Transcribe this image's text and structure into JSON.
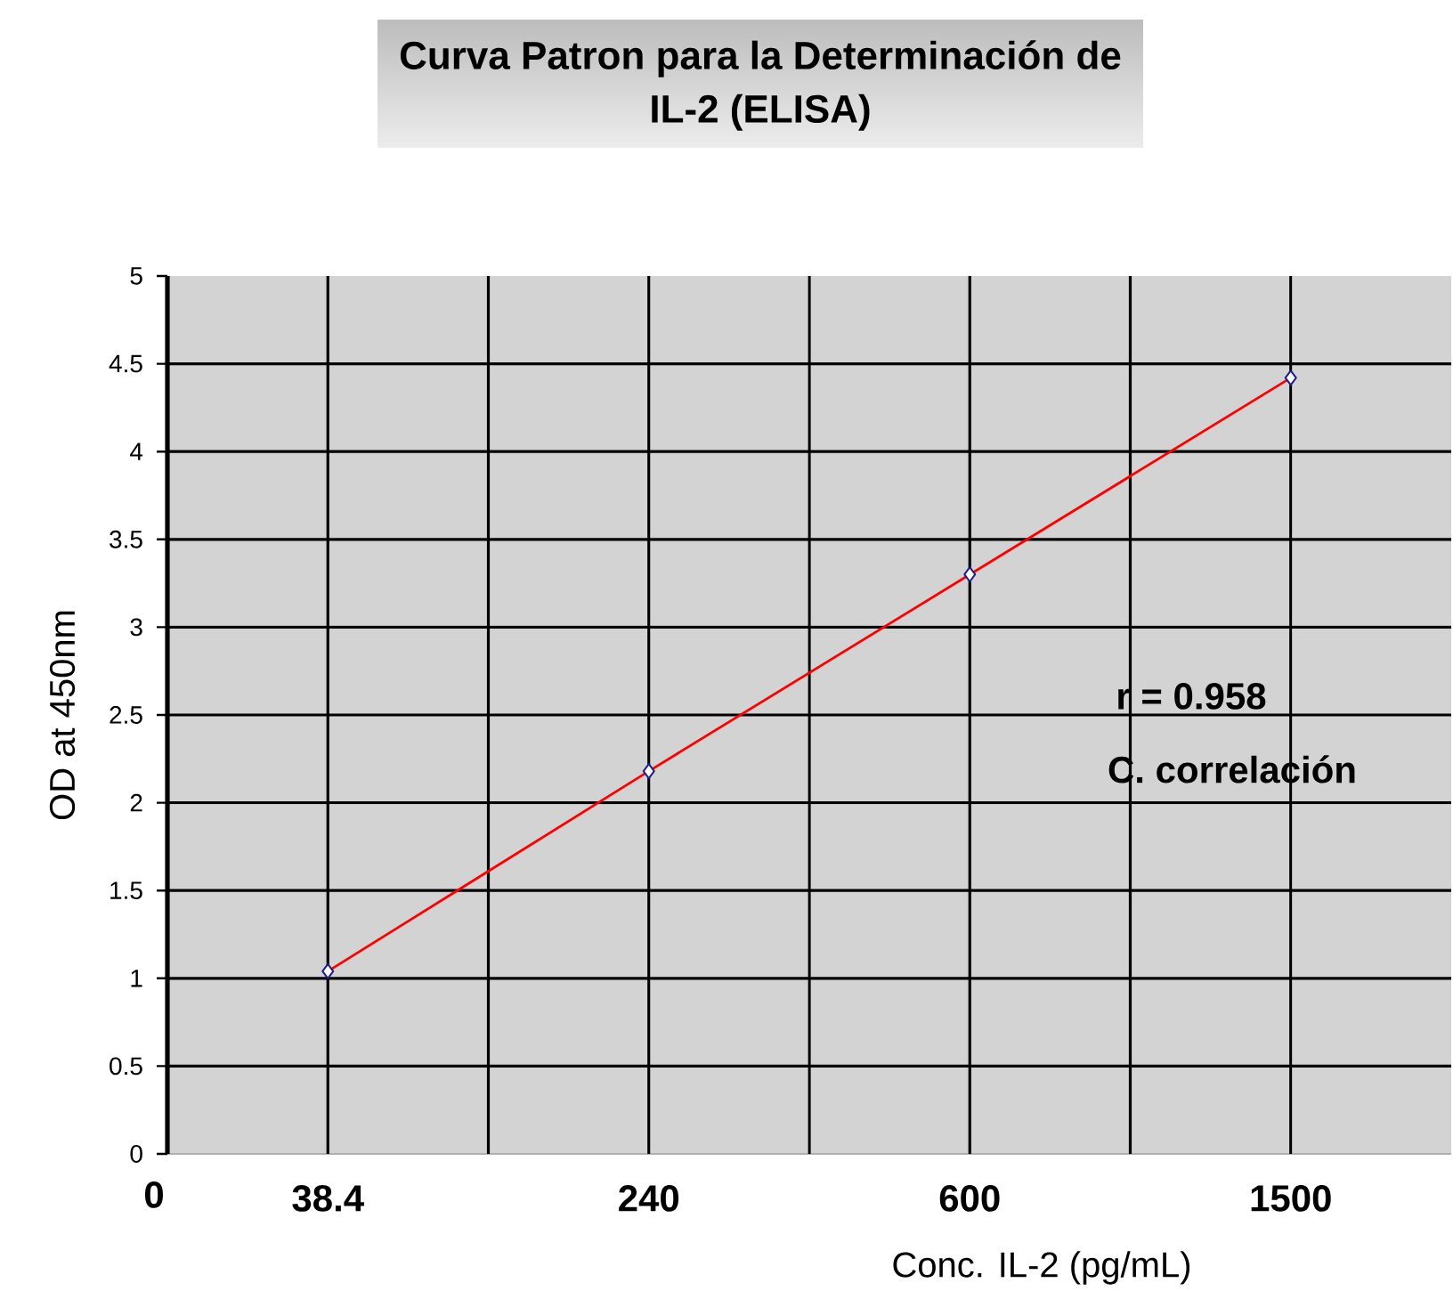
{
  "chart_data": {
    "type": "line",
    "title": "Curva Patron para la Determinación de IL-2 (ELISA)",
    "xlabel": "Conc. IL-2 (pg/mL)",
    "ylabel": "OD at 450nm",
    "categories": [
      "38.4",
      "240",
      "600",
      "1500"
    ],
    "series": [
      {
        "color": "#ff0000",
        "values": [
          1.04,
          2.18,
          3.3,
          4.42
        ]
      }
    ],
    "ylim": [
      0,
      5
    ],
    "yticks": [
      0,
      0.5,
      1,
      1.5,
      2,
      2.5,
      3,
      3.5,
      4,
      4.5,
      5
    ],
    "grid": true,
    "marker": "diamond",
    "annotations": [
      "0",
      "r = 0.958",
      "C. correlación"
    ]
  }
}
